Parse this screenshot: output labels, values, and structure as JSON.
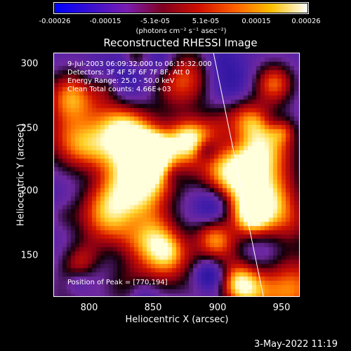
{
  "colorbar": {
    "tick_labels": [
      "-0.00026",
      "-0.00015",
      "-5.1e-05",
      "5.1e-05",
      "0.00015",
      "0.00026"
    ],
    "units": "(photons cm⁻² s⁻¹ asec⁻²)",
    "colors": [
      "#0000ff",
      "#3a10d0",
      "#7a1cb0",
      "#800020",
      "#d01000",
      "#ff6000",
      "#ffc000",
      "#ffffff"
    ]
  },
  "plot": {
    "title": "Reconstructed RHESSI Image",
    "xlabel": "Heliocentric X (arcsec)",
    "ylabel": "Heliocentric Y (arcsec)",
    "x_ticks": [
      "800",
      "850",
      "900",
      "950"
    ],
    "y_ticks": [
      "300",
      "250",
      "200",
      "150"
    ],
    "xlim": [
      770,
      962
    ],
    "ylim": [
      115,
      310
    ],
    "limb_line": [
      [
        895,
        310
      ],
      [
        934,
        115
      ]
    ]
  },
  "annotations": {
    "time_range": "9-Jul-2003 06:09:32.000 to 06:15:32.000",
    "detectors": "Detectors: 3F 4F 5F 6F 7F 8F, Att 0",
    "energy": "Energy Range: 25.0 - 50.0 keV",
    "clean": "Clean    Total counts: 4.66E+03",
    "peak": "Position of Peak = [770,194]"
  },
  "timestamp": "3-May-2022 11:19"
}
